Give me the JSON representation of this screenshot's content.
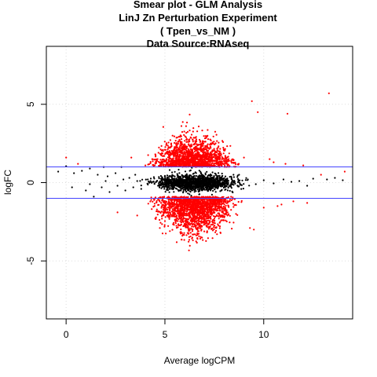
{
  "chart_data": {
    "type": "scatter",
    "title_lines": [
      "Smear plot - GLM Analysis",
      "LinJ Zn Perturbation Experiment",
      "( Tpen_vs_NM )",
      "Data Source:RNAseq"
    ],
    "xlabel": "Average logCPM",
    "ylabel": "logFC",
    "xlim": [
      -1,
      14.5
    ],
    "ylim": [
      -8.7,
      8.7
    ],
    "xticks": [
      0,
      5,
      10
    ],
    "yticks": [
      -5,
      0,
      5
    ],
    "grid": true,
    "hlines": [
      1,
      -1
    ],
    "colors": {
      "non_significant": "#000000",
      "significant": "#ff0000",
      "threshold_line": "#4444ff",
      "grid": "#dddddd"
    },
    "series": [
      {
        "role": "non_significant",
        "points": [
          [
            -0.4,
            0.7
          ],
          [
            0.0,
            1.05
          ],
          [
            0.4,
            0.6
          ],
          [
            0.8,
            0.75
          ],
          [
            1.2,
            0.9
          ],
          [
            1.6,
            0.5
          ],
          [
            1.9,
            1.0
          ],
          [
            2.1,
            0.4
          ],
          [
            2.5,
            0.6
          ],
          [
            2.8,
            1.0
          ],
          [
            3.2,
            0.3
          ],
          [
            3.5,
            0.5
          ],
          [
            0.3,
            -0.3
          ],
          [
            1.0,
            -0.5
          ],
          [
            1.4,
            -0.9
          ],
          [
            1.8,
            -0.3
          ],
          [
            2.2,
            -0.6
          ],
          [
            2.6,
            -0.2
          ],
          [
            3.0,
            -0.5
          ],
          [
            3.4,
            -0.3
          ],
          [
            3.8,
            -0.4
          ],
          [
            1.2,
            -0.1
          ],
          [
            2.0,
            0.1
          ],
          [
            2.9,
            0.2
          ],
          [
            3.6,
            0.1
          ],
          [
            8.5,
            0.1
          ],
          [
            9.2,
            0.2
          ],
          [
            10.0,
            0.15
          ],
          [
            11.0,
            0.2
          ],
          [
            11.8,
            0.1
          ],
          [
            12.5,
            0.25
          ],
          [
            13.2,
            0.2
          ],
          [
            14.0,
            0.15
          ],
          [
            8.8,
            -0.1
          ],
          [
            9.6,
            -0.1
          ],
          [
            10.5,
            -0.05
          ],
          [
            11.4,
            0.05
          ],
          [
            12.2,
            -0.2
          ],
          [
            13.6,
            0.3
          ]
        ]
      },
      {
        "role": "significant",
        "points": [
          [
            0.0,
            1.6
          ],
          [
            0.6,
            1.2
          ],
          [
            2.6,
            -1.9
          ],
          [
            3.3,
            1.6
          ],
          [
            3.6,
            -2.1
          ],
          [
            9.4,
            5.2
          ],
          [
            9.7,
            4.5
          ],
          [
            11.2,
            4.4
          ],
          [
            13.3,
            5.7
          ],
          [
            9.3,
            -2.9
          ],
          [
            9.5,
            -3.0
          ],
          [
            10.5,
            1.3
          ],
          [
            11.1,
            1.2
          ],
          [
            12.0,
            1.1
          ],
          [
            12.9,
            0.5
          ],
          [
            14.1,
            0.7
          ],
          [
            12.2,
            -1.3
          ],
          [
            10.0,
            -1.6
          ],
          [
            10.7,
            -1.5
          ],
          [
            11.5,
            -1.2
          ],
          [
            9.0,
            1.6
          ],
          [
            8.6,
            -2.0
          ],
          [
            10.3,
            1.5
          ],
          [
            10.9,
            -1.4
          ]
        ]
      }
    ],
    "clouds": [
      {
        "role": "significant",
        "count": 1500,
        "x_range": [
          3.8,
          9.0
        ],
        "y_sign": 1,
        "y_offset": 1.0,
        "y_spread": 1.6,
        "taper": 0.7
      },
      {
        "role": "significant",
        "count": 1800,
        "x_range": [
          3.8,
          9.2
        ],
        "y_sign": -1,
        "y_offset": 0.9,
        "y_spread": 1.9,
        "taper": 0.6
      },
      {
        "role": "non_significant",
        "count": 1400,
        "x_range": [
          3.6,
          9.5
        ],
        "y_sign": 0,
        "y_offset": 0.0,
        "y_spread": 0.45,
        "taper": 0.5
      }
    ]
  }
}
